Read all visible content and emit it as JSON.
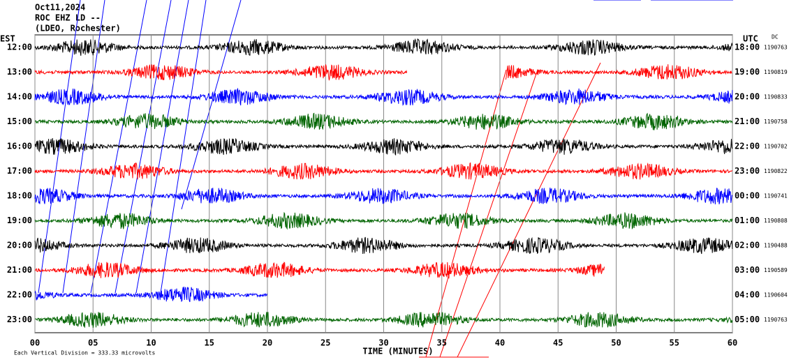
{
  "chart_data": {
    "type": "helicorder",
    "title": "Oct11,2024",
    "subtitle": "ROC EHZ LD --",
    "source": "(LDEO, Rochester)",
    "left_axis_label": "EST",
    "right_axis_label": "UTC",
    "dc_label": "DC",
    "xlabel": "TIME (MINUTES)",
    "scale_note": "Each Vertical Division =  333.33 microvolts",
    "xlim": [
      0,
      60
    ],
    "xticks": [
      {
        "value": 0,
        "label": "00"
      },
      {
        "value": 5,
        "label": "05"
      },
      10,
      15,
      20,
      25,
      30,
      35,
      40,
      45,
      50,
      55,
      60
    ],
    "grid": true,
    "rows": [
      {
        "left": "12:00",
        "right": "18:00",
        "dc": "1190763",
        "color": "#000000",
        "segments": [
          [
            0,
            60
          ]
        ]
      },
      {
        "left": "13:00",
        "right": "19:00",
        "dc": "1190819",
        "color": "#ff0000",
        "segments": [
          [
            0,
            32
          ],
          [
            40.5,
            60
          ]
        ]
      },
      {
        "left": "14:00",
        "right": "20:00",
        "dc": "1190833",
        "color": "#0000ff",
        "segments": [
          [
            0,
            60
          ]
        ]
      },
      {
        "left": "15:00",
        "right": "21:00",
        "dc": "1190758",
        "color": "#006400",
        "segments": [
          [
            0,
            60
          ]
        ]
      },
      {
        "left": "16:00",
        "right": "22:00",
        "dc": "1190702",
        "color": "#000000",
        "segments": [
          [
            0,
            60
          ]
        ]
      },
      {
        "left": "17:00",
        "right": "23:00",
        "dc": "1190822",
        "color": "#ff0000",
        "segments": [
          [
            0,
            60
          ]
        ]
      },
      {
        "left": "18:00",
        "right": "00:00",
        "dc": "1190741",
        "color": "#0000ff",
        "segments": [
          [
            0,
            60
          ]
        ]
      },
      {
        "left": "19:00",
        "right": "01:00",
        "dc": "1190808",
        "color": "#006400",
        "segments": [
          [
            0,
            60
          ]
        ]
      },
      {
        "left": "20:00",
        "right": "02:00",
        "dc": "1190488",
        "color": "#000000",
        "segments": [
          [
            0,
            60
          ]
        ]
      },
      {
        "left": "21:00",
        "right": "03:00",
        "dc": "1190589",
        "color": "#ff0000",
        "segments": [
          [
            0,
            49
          ]
        ]
      },
      {
        "left": "22:00",
        "right": "04:00",
        "dc": "1190604",
        "color": "#0000ff",
        "segments": [
          [
            0,
            20
          ]
        ]
      },
      {
        "left": "23:00",
        "right": "05:00",
        "dc": "1190763",
        "color": "#006400",
        "segments": [
          [
            0,
            60
          ]
        ]
      }
    ]
  }
}
